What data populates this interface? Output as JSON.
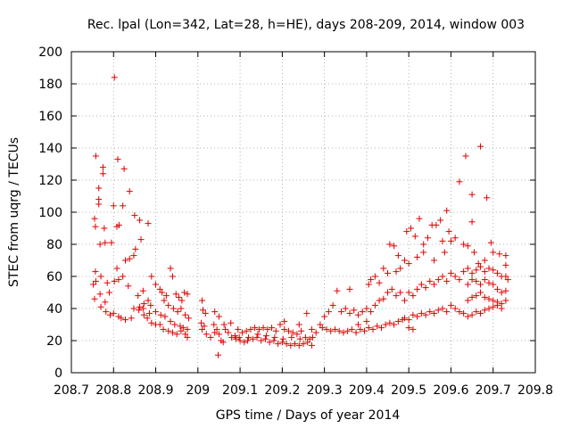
{
  "chart_data": {
    "type": "scatter",
    "title": "Rec. lpal (Lon=342, Lat=28, h=HE), days 208-209, 2014, window 003",
    "xlabel": "GPS time / Days of year 2014",
    "ylabel": "STEC from uqrg / TECUs",
    "xlim": [
      208.7,
      209.8
    ],
    "ylim": [
      0,
      200
    ],
    "x_ticks": [
      "208.7",
      "208.8",
      "208.9",
      "209",
      "209.1",
      "209.2",
      "209.3",
      "209.4",
      "209.5",
      "209.6",
      "209.7",
      "209.8"
    ],
    "y_ticks": [
      "0",
      "20",
      "40",
      "60",
      "80",
      "100",
      "120",
      "140",
      "160",
      "180",
      "200"
    ],
    "grid": true,
    "marker": "+",
    "marker_color": "#e00000",
    "points": [
      [
        208.802,
        184
      ],
      [
        208.758,
        135
      ],
      [
        208.775,
        128
      ],
      [
        208.81,
        133
      ],
      [
        208.825,
        127
      ],
      [
        208.775,
        124
      ],
      [
        208.765,
        115
      ],
      [
        208.838,
        113
      ],
      [
        208.765,
        108
      ],
      [
        208.8,
        104
      ],
      [
        208.822,
        104
      ],
      [
        208.765,
        105
      ],
      [
        208.755,
        96
      ],
      [
        208.85,
        98
      ],
      [
        208.882,
        93
      ],
      [
        208.813,
        92
      ],
      [
        208.808,
        91
      ],
      [
        208.757,
        91
      ],
      [
        208.778,
        90
      ],
      [
        208.862,
        95
      ],
      [
        208.78,
        81
      ],
      [
        208.768,
        80
      ],
      [
        208.865,
        83
      ],
      [
        208.852,
        77
      ],
      [
        208.848,
        73
      ],
      [
        208.838,
        71
      ],
      [
        208.795,
        81
      ],
      [
        208.828,
        70
      ],
      [
        208.822,
        60
      ],
      [
        208.808,
        65
      ],
      [
        208.757,
        63
      ],
      [
        208.77,
        60
      ],
      [
        208.812,
        58
      ],
      [
        208.758,
        57
      ],
      [
        208.752,
        55
      ],
      [
        208.785,
        56
      ],
      [
        208.802,
        57
      ],
      [
        208.835,
        54
      ],
      [
        208.87,
        51
      ],
      [
        208.858,
        48
      ],
      [
        208.755,
        46
      ],
      [
        208.768,
        49
      ],
      [
        208.79,
        50
      ],
      [
        208.78,
        44
      ],
      [
        208.77,
        41
      ],
      [
        208.782,
        38
      ],
      [
        208.792,
        36
      ],
      [
        208.8,
        37
      ],
      [
        208.812,
        35
      ],
      [
        208.818,
        34
      ],
      [
        208.828,
        33
      ],
      [
        208.842,
        34
      ],
      [
        208.848,
        40
      ],
      [
        208.86,
        39
      ],
      [
        208.872,
        36
      ],
      [
        208.88,
        34
      ],
      [
        208.89,
        31
      ],
      [
        208.9,
        30
      ],
      [
        208.91,
        30
      ],
      [
        208.918,
        27
      ],
      [
        208.93,
        26
      ],
      [
        208.94,
        25
      ],
      [
        208.95,
        24
      ],
      [
        208.96,
        26
      ],
      [
        208.97,
        24
      ],
      [
        208.975,
        22
      ],
      [
        208.89,
        60
      ],
      [
        208.9,
        55
      ],
      [
        208.91,
        52
      ],
      [
        208.915,
        50
      ],
      [
        208.925,
        48
      ],
      [
        208.935,
        65
      ],
      [
        208.94,
        60
      ],
      [
        208.948,
        49
      ],
      [
        208.955,
        47
      ],
      [
        208.962,
        45
      ],
      [
        208.968,
        50
      ],
      [
        208.975,
        49
      ],
      [
        208.92,
        45
      ],
      [
        208.93,
        42
      ],
      [
        208.942,
        40
      ],
      [
        208.952,
        38
      ],
      [
        208.96,
        40
      ],
      [
        208.97,
        36
      ],
      [
        208.978,
        34
      ],
      [
        208.9,
        38
      ],
      [
        208.912,
        36
      ],
      [
        208.922,
        35
      ],
      [
        208.935,
        32
      ],
      [
        208.945,
        30
      ],
      [
        208.958,
        29
      ],
      [
        208.965,
        28
      ],
      [
        208.975,
        27
      ],
      [
        208.882,
        45
      ],
      [
        208.888,
        42
      ],
      [
        208.87,
        40
      ],
      [
        208.862,
        41
      ],
      [
        208.872,
        43
      ],
      [
        208.885,
        37
      ],
      [
        209.01,
        45
      ],
      [
        209.012,
        39
      ],
      [
        209.018,
        37
      ],
      [
        209.008,
        31
      ],
      [
        209.015,
        29
      ],
      [
        209.01,
        27
      ],
      [
        209.02,
        24
      ],
      [
        209.03,
        22
      ],
      [
        209.038,
        30
      ],
      [
        209.045,
        27
      ],
      [
        209.04,
        25
      ],
      [
        209.05,
        24
      ],
      [
        209.055,
        20
      ],
      [
        209.06,
        19
      ],
      [
        209.065,
        27
      ],
      [
        209.072,
        25
      ],
      [
        209.078,
        31
      ],
      [
        209.048,
        11
      ],
      [
        209.062,
        30
      ],
      [
        209.08,
        22
      ],
      [
        209.09,
        21
      ],
      [
        209.1,
        20
      ],
      [
        209.11,
        19
      ],
      [
        209.118,
        20
      ],
      [
        209.12,
        22
      ],
      [
        209.13,
        21
      ],
      [
        209.14,
        22
      ],
      [
        209.15,
        20
      ],
      [
        209.16,
        21
      ],
      [
        209.17,
        19
      ],
      [
        209.18,
        20
      ],
      [
        209.19,
        18
      ],
      [
        209.2,
        19
      ],
      [
        209.21,
        18
      ],
      [
        209.22,
        17
      ],
      [
        209.23,
        18
      ],
      [
        209.24,
        17
      ],
      [
        209.25,
        18
      ],
      [
        209.26,
        19
      ],
      [
        209.27,
        17
      ],
      [
        209.095,
        27
      ],
      [
        209.105,
        25
      ],
      [
        209.115,
        26
      ],
      [
        209.125,
        27
      ],
      [
        209.135,
        28
      ],
      [
        209.145,
        27
      ],
      [
        209.155,
        28
      ],
      [
        209.165,
        27
      ],
      [
        209.175,
        28
      ],
      [
        209.185,
        26
      ],
      [
        209.195,
        30
      ],
      [
        209.205,
        27
      ],
      [
        209.215,
        26
      ],
      [
        209.225,
        25
      ],
      [
        209.235,
        24
      ],
      [
        209.245,
        26
      ],
      [
        209.255,
        22
      ],
      [
        209.265,
        21
      ],
      [
        209.272,
        22
      ],
      [
        209.04,
        38
      ],
      [
        209.05,
        35
      ],
      [
        209.088,
        23
      ],
      [
        209.098,
        22
      ],
      [
        209.142,
        24
      ],
      [
        209.162,
        23
      ],
      [
        209.182,
        22
      ],
      [
        209.202,
        21
      ],
      [
        209.222,
        22
      ],
      [
        209.242,
        21
      ],
      [
        209.258,
        37
      ],
      [
        209.24,
        30
      ],
      [
        209.205,
        32
      ],
      [
        209.27,
        27
      ],
      [
        209.28,
        25
      ],
      [
        209.29,
        30
      ],
      [
        209.3,
        35
      ],
      [
        209.31,
        38
      ],
      [
        209.32,
        42
      ],
      [
        209.33,
        51
      ],
      [
        209.34,
        38
      ],
      [
        209.35,
        40
      ],
      [
        209.36,
        37
      ],
      [
        209.37,
        39
      ],
      [
        209.38,
        36
      ],
      [
        209.39,
        38
      ],
      [
        209.4,
        40
      ],
      [
        209.41,
        38
      ],
      [
        209.42,
        42
      ],
      [
        209.43,
        45
      ],
      [
        209.44,
        46
      ],
      [
        209.45,
        50
      ],
      [
        209.46,
        52
      ],
      [
        209.47,
        48
      ],
      [
        209.48,
        50
      ],
      [
        209.295,
        28
      ],
      [
        209.305,
        27
      ],
      [
        209.315,
        26
      ],
      [
        209.325,
        27
      ],
      [
        209.335,
        26
      ],
      [
        209.345,
        25
      ],
      [
        209.355,
        26
      ],
      [
        209.365,
        27
      ],
      [
        209.375,
        25
      ],
      [
        209.385,
        27
      ],
      [
        209.395,
        26
      ],
      [
        209.405,
        28
      ],
      [
        209.415,
        27
      ],
      [
        209.425,
        29
      ],
      [
        209.435,
        28
      ],
      [
        209.445,
        30
      ],
      [
        209.455,
        31
      ],
      [
        209.465,
        30
      ],
      [
        209.475,
        32
      ],
      [
        209.485,
        33
      ],
      [
        209.36,
        52
      ],
      [
        209.38,
        30
      ],
      [
        209.4,
        32
      ],
      [
        209.405,
        55
      ],
      [
        209.41,
        58
      ],
      [
        209.42,
        60
      ],
      [
        209.43,
        56
      ],
      [
        209.44,
        65
      ],
      [
        209.45,
        62
      ],
      [
        209.455,
        80
      ],
      [
        209.465,
        79
      ],
      [
        209.475,
        73
      ],
      [
        209.48,
        65
      ],
      [
        209.47,
        63
      ],
      [
        209.49,
        34
      ],
      [
        209.5,
        33
      ],
      [
        209.51,
        36
      ],
      [
        209.52,
        35
      ],
      [
        209.53,
        37
      ],
      [
        209.54,
        36
      ],
      [
        209.55,
        38
      ],
      [
        209.56,
        37
      ],
      [
        209.57,
        39
      ],
      [
        209.58,
        40
      ],
      [
        209.59,
        38
      ],
      [
        209.6,
        42
      ],
      [
        209.61,
        40
      ],
      [
        209.62,
        38
      ],
      [
        209.63,
        37
      ],
      [
        209.49,
        45
      ],
      [
        209.5,
        50
      ],
      [
        209.51,
        48
      ],
      [
        209.52,
        52
      ],
      [
        209.53,
        55
      ],
      [
        209.54,
        53
      ],
      [
        209.55,
        57
      ],
      [
        209.56,
        55
      ],
      [
        209.57,
        58
      ],
      [
        209.58,
        60
      ],
      [
        209.59,
        57
      ],
      [
        209.6,
        62
      ],
      [
        209.61,
        60
      ],
      [
        209.62,
        58
      ],
      [
        209.63,
        63
      ],
      [
        209.495,
        88
      ],
      [
        209.505,
        90
      ],
      [
        209.515,
        85
      ],
      [
        209.525,
        96
      ],
      [
        209.535,
        80
      ],
      [
        209.545,
        84
      ],
      [
        209.555,
        92
      ],
      [
        209.565,
        92
      ],
      [
        209.575,
        95
      ],
      [
        209.58,
        82
      ],
      [
        209.59,
        101
      ],
      [
        209.595,
        88
      ],
      [
        209.6,
        82
      ],
      [
        209.61,
        84
      ],
      [
        209.62,
        119
      ],
      [
        209.63,
        80
      ],
      [
        209.49,
        70
      ],
      [
        209.5,
        68
      ],
      [
        209.52,
        72
      ],
      [
        209.535,
        75
      ],
      [
        209.56,
        70
      ],
      [
        209.585,
        75
      ],
      [
        209.5,
        28
      ],
      [
        209.51,
        27
      ],
      [
        209.635,
        135
      ],
      [
        209.65,
        111
      ],
      [
        209.67,
        141
      ],
      [
        209.685,
        109
      ],
      [
        209.65,
        94
      ],
      [
        209.695,
        81
      ],
      [
        209.64,
        79
      ],
      [
        209.655,
        75
      ],
      [
        209.665,
        68
      ],
      [
        209.68,
        70
      ],
      [
        209.7,
        75
      ],
      [
        209.715,
        74
      ],
      [
        209.73,
        73
      ],
      [
        209.64,
        65
      ],
      [
        209.65,
        62
      ],
      [
        209.66,
        64
      ],
      [
        209.67,
        66
      ],
      [
        209.68,
        63
      ],
      [
        209.69,
        65
      ],
      [
        209.7,
        64
      ],
      [
        209.71,
        62
      ],
      [
        209.72,
        60
      ],
      [
        209.73,
        67
      ],
      [
        209.64,
        55
      ],
      [
        209.65,
        58
      ],
      [
        209.66,
        57
      ],
      [
        209.67,
        55
      ],
      [
        209.68,
        58
      ],
      [
        209.69,
        56
      ],
      [
        209.7,
        55
      ],
      [
        209.71,
        52
      ],
      [
        209.72,
        50
      ],
      [
        209.73,
        51
      ],
      [
        209.64,
        45
      ],
      [
        209.65,
        47
      ],
      [
        209.66,
        48
      ],
      [
        209.67,
        50
      ],
      [
        209.68,
        47
      ],
      [
        209.69,
        46
      ],
      [
        209.7,
        45
      ],
      [
        209.71,
        44
      ],
      [
        209.72,
        43
      ],
      [
        209.73,
        45
      ],
      [
        209.64,
        35
      ],
      [
        209.65,
        36
      ],
      [
        209.66,
        38
      ],
      [
        209.67,
        37
      ],
      [
        209.68,
        39
      ],
      [
        209.69,
        40
      ],
      [
        209.7,
        41
      ],
      [
        209.71,
        42
      ],
      [
        209.72,
        40
      ],
      [
        209.73,
        60
      ],
      [
        209.735,
        58
      ]
    ]
  }
}
